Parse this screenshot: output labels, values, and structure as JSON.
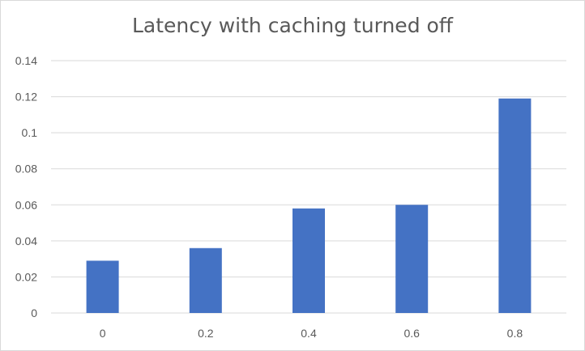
{
  "chart_data": {
    "type": "bar",
    "title": "Latency with caching turned off",
    "xlabel": "",
    "ylabel": "",
    "categories": [
      "0",
      "0.2",
      "0.4",
      "0.6",
      "0.8"
    ],
    "values": [
      0.029,
      0.036,
      0.058,
      0.06,
      0.119
    ],
    "ylim": [
      0,
      0.14
    ],
    "yticks": [
      "0",
      "0.02",
      "0.04",
      "0.06",
      "0.08",
      "0.1",
      "0.12",
      "0.14"
    ],
    "grid": true,
    "legend": "none",
    "bar_color": "#4472c4",
    "grid_color": "#d9d9d9"
  }
}
